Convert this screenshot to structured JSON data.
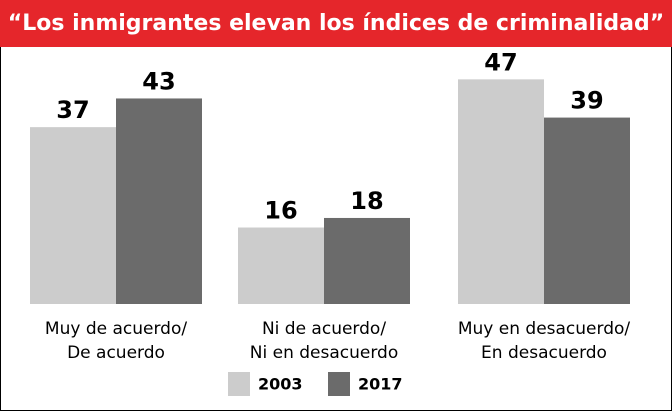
{
  "chart_data": {
    "type": "bar",
    "title": "“Los inmigrantes elevan los índices de criminalidad”",
    "categories": [
      [
        "Muy de acuerdo/",
        "De acuerdo"
      ],
      [
        "Ni de acuerdo/",
        "Ni en desacuerdo"
      ],
      [
        "Muy en desacuerdo/",
        "En desacuerdo"
      ]
    ],
    "series": [
      {
        "name": "2003",
        "color": "#cccccc",
        "values": [
          37,
          16,
          47
        ]
      },
      {
        "name": "2017",
        "color": "#6b6b6b",
        "values": [
          43,
          18,
          39
        ]
      }
    ],
    "title_color": "#e5262b"
  }
}
